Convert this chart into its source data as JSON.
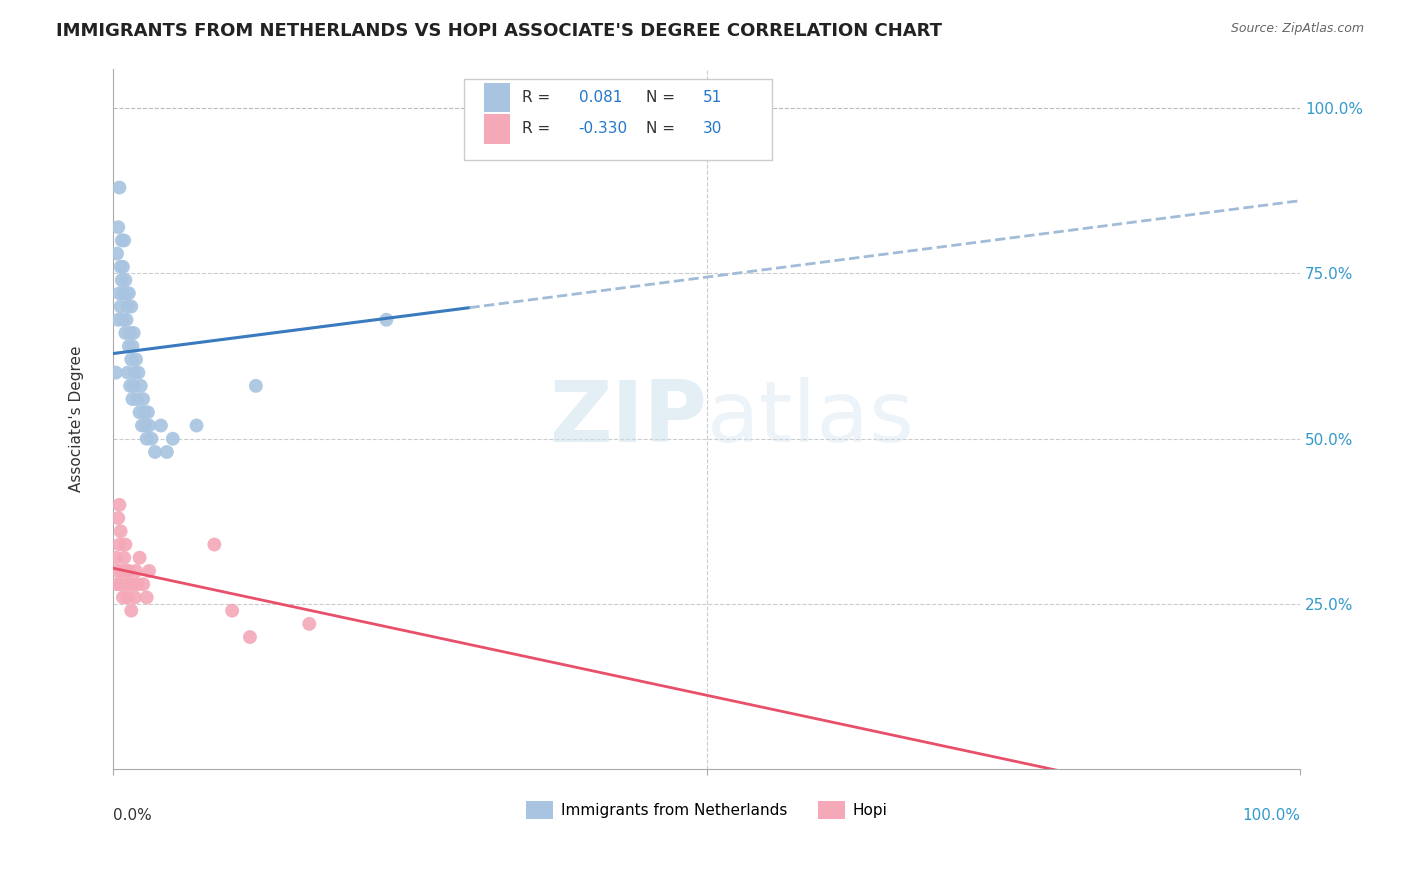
{
  "title": "IMMIGRANTS FROM NETHERLANDS VS HOPI ASSOCIATE'S DEGREE CORRELATION CHART",
  "source": "Source: ZipAtlas.com",
  "ylabel": "Associate's Degree",
  "legend_blue_label": "Immigrants from Netherlands",
  "legend_pink_label": "Hopi",
  "r_blue": 0.081,
  "n_blue": 51,
  "r_pink": -0.33,
  "n_pink": 30,
  "blue_color": "#a8c4e0",
  "pink_color": "#f4a8b8",
  "blue_line_color": "#3a7abf",
  "pink_line_color": "#e8506a",
  "blue_dashed_color": "#a0bcd8",
  "watermark_color": "#cce0ee",
  "blue_scatter_x": [
    0.002,
    0.003,
    0.004,
    0.004,
    0.005,
    0.005,
    0.006,
    0.006,
    0.007,
    0.007,
    0.008,
    0.008,
    0.009,
    0.009,
    0.01,
    0.01,
    0.011,
    0.011,
    0.012,
    0.012,
    0.013,
    0.013,
    0.014,
    0.014,
    0.015,
    0.015,
    0.016,
    0.016,
    0.017,
    0.017,
    0.018,
    0.019,
    0.02,
    0.021,
    0.022,
    0.023,
    0.024,
    0.025,
    0.026,
    0.027,
    0.028,
    0.029,
    0.03,
    0.032,
    0.035,
    0.04,
    0.045,
    0.05,
    0.07,
    0.12,
    0.23
  ],
  "blue_scatter_y": [
    0.6,
    0.78,
    0.68,
    0.82,
    0.72,
    0.88,
    0.7,
    0.76,
    0.74,
    0.8,
    0.68,
    0.76,
    0.72,
    0.8,
    0.66,
    0.74,
    0.68,
    0.72,
    0.6,
    0.7,
    0.64,
    0.72,
    0.58,
    0.66,
    0.62,
    0.7,
    0.56,
    0.64,
    0.58,
    0.66,
    0.6,
    0.62,
    0.56,
    0.6,
    0.54,
    0.58,
    0.52,
    0.56,
    0.54,
    0.52,
    0.5,
    0.54,
    0.52,
    0.5,
    0.48,
    0.52,
    0.48,
    0.5,
    0.52,
    0.58,
    0.68
  ],
  "pink_scatter_x": [
    0.002,
    0.003,
    0.004,
    0.004,
    0.005,
    0.005,
    0.006,
    0.006,
    0.007,
    0.008,
    0.009,
    0.01,
    0.01,
    0.011,
    0.012,
    0.013,
    0.014,
    0.015,
    0.016,
    0.018,
    0.019,
    0.02,
    0.022,
    0.025,
    0.028,
    0.03,
    0.085,
    0.1,
    0.115,
    0.165
  ],
  "pink_scatter_y": [
    0.32,
    0.28,
    0.38,
    0.3,
    0.34,
    0.4,
    0.28,
    0.36,
    0.3,
    0.26,
    0.32,
    0.28,
    0.34,
    0.3,
    0.26,
    0.3,
    0.28,
    0.24,
    0.28,
    0.26,
    0.3,
    0.28,
    0.32,
    0.28,
    0.26,
    0.3,
    0.34,
    0.24,
    0.2,
    0.22
  ],
  "xmin": 0.0,
  "xmax": 1.0,
  "ymin": 0.0,
  "ymax": 1.0,
  "blue_line_x_solid_end": 0.3,
  "pink_line_full_range": true
}
